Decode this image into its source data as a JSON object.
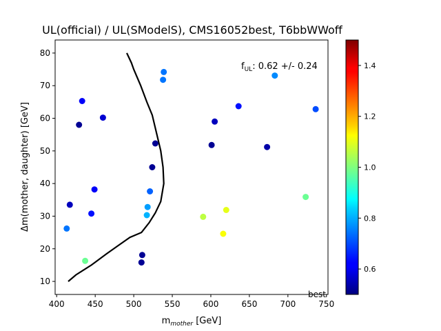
{
  "chart_data": {
    "type": "scatter",
    "title": "UL(official) / UL(SModelS), CMS16052best, T6bbWWoff",
    "xlabel_main": "m",
    "xlabel_sub": "mother",
    "xlabel_unit": " [GeV]",
    "ylabel": "Δm(mother, daughter) [GeV]",
    "xlim": [
      398,
      752
    ],
    "ylim": [
      6,
      84
    ],
    "xticks": [
      400,
      450,
      500,
      550,
      600,
      650,
      700,
      750
    ],
    "yticks": [
      10,
      20,
      30,
      40,
      50,
      60,
      70,
      80
    ],
    "colorbar": {
      "colormap": "jet",
      "range": [
        0.5,
        1.5
      ],
      "ticks": [
        0.6,
        0.8,
        1.0,
        1.2,
        1.4
      ],
      "tick_labels": [
        "0.6",
        "0.8",
        "1.0",
        "1.2",
        "1.4"
      ]
    },
    "annotation_prefix": "f",
    "annotation_sub": "UL",
    "annotation_value": ": 0.62 +/- 0.24",
    "corner_label": "best",
    "grid": false,
    "points": [
      {
        "x": 413,
        "y": 26.2,
        "v": 0.74
      },
      {
        "x": 417,
        "y": 33.5,
        "v": 0.56
      },
      {
        "x": 429,
        "y": 58.0,
        "v": 0.52
      },
      {
        "x": 433,
        "y": 65.3,
        "v": 0.62
      },
      {
        "x": 437,
        "y": 16.3,
        "v": 0.98
      },
      {
        "x": 445,
        "y": 30.8,
        "v": 0.64
      },
      {
        "x": 449,
        "y": 38.2,
        "v": 0.62
      },
      {
        "x": 460,
        "y": 60.2,
        "v": 0.58
      },
      {
        "x": 510,
        "y": 15.8,
        "v": 0.52
      },
      {
        "x": 511,
        "y": 18.1,
        "v": 0.52
      },
      {
        "x": 517,
        "y": 30.3,
        "v": 0.8
      },
      {
        "x": 518,
        "y": 32.8,
        "v": 0.78
      },
      {
        "x": 521,
        "y": 37.6,
        "v": 0.72
      },
      {
        "x": 524,
        "y": 45.0,
        "v": 0.52
      },
      {
        "x": 528,
        "y": 52.3,
        "v": 0.52
      },
      {
        "x": 538,
        "y": 71.8,
        "v": 0.74
      },
      {
        "x": 539,
        "y": 74.2,
        "v": 0.74
      },
      {
        "x": 590,
        "y": 29.8,
        "v": 1.06
      },
      {
        "x": 601,
        "y": 51.8,
        "v": 0.52
      },
      {
        "x": 605,
        "y": 59.0,
        "v": 0.56
      },
      {
        "x": 616,
        "y": 24.6,
        "v": 1.12
      },
      {
        "x": 620,
        "y": 31.9,
        "v": 1.1
      },
      {
        "x": 636,
        "y": 63.7,
        "v": 0.64
      },
      {
        "x": 673,
        "y": 51.2,
        "v": 0.54
      },
      {
        "x": 683,
        "y": 73.1,
        "v": 0.76
      },
      {
        "x": 723,
        "y": 35.9,
        "v": 0.98
      },
      {
        "x": 736,
        "y": 62.8,
        "v": 0.7
      }
    ],
    "exclusion_line": [
      [
        415,
        10
      ],
      [
        425,
        12
      ],
      [
        445,
        15
      ],
      [
        465,
        18.5
      ],
      [
        480,
        21
      ],
      [
        495,
        23.5
      ],
      [
        510,
        25
      ],
      [
        520,
        28
      ],
      [
        528,
        31
      ],
      [
        535,
        34.5
      ],
      [
        539,
        40
      ],
      [
        538,
        45
      ],
      [
        535,
        50
      ],
      [
        530,
        55
      ],
      [
        524,
        61
      ],
      [
        517,
        65
      ],
      [
        509,
        70
      ],
      [
        500,
        75
      ],
      [
        497,
        77
      ],
      [
        491,
        80
      ]
    ]
  }
}
